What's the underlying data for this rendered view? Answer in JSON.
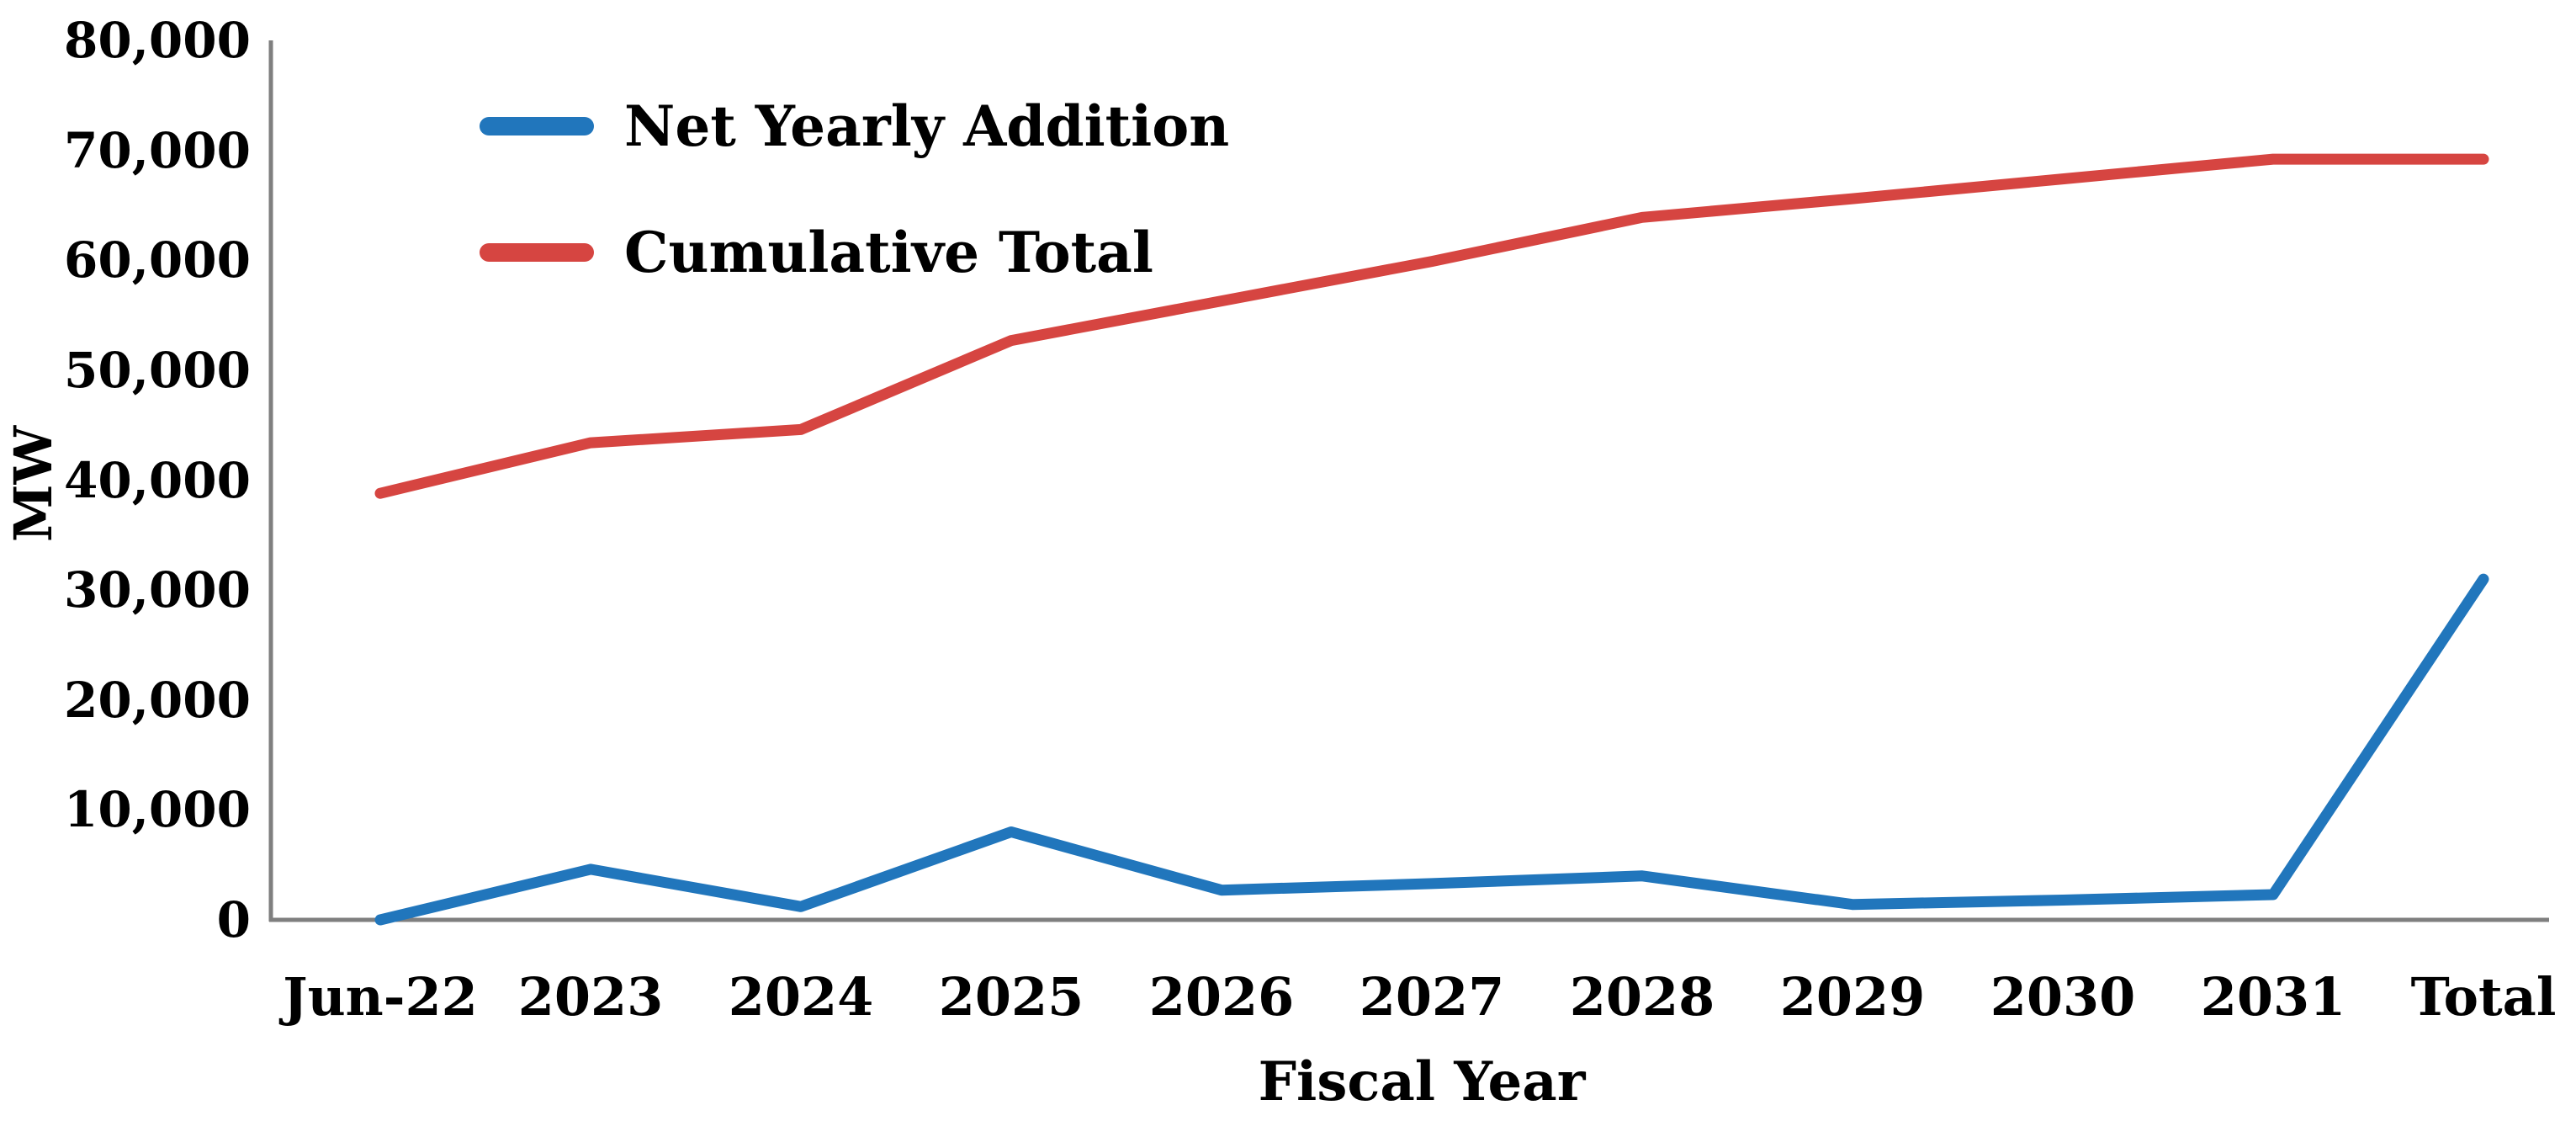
{
  "axes": {
    "y_title": "MW",
    "x_title": "Fiscal Year"
  },
  "legend": [
    {
      "label": "Net Yearly Addition",
      "color": "#2176BC"
    },
    {
      "label": "Cumulative Total",
      "color": "#D64541"
    }
  ],
  "colors": {
    "axis_line": "#7F7F7F",
    "text": "#000000",
    "background": "#FFFFFF"
  },
  "chart_data": {
    "type": "line",
    "title": "",
    "xlabel": "Fiscal Year",
    "ylabel": "MW",
    "categories": [
      "Jun-22",
      "2023",
      "2024",
      "2025",
      "2026",
      "2027",
      "2028",
      "2029",
      "2030",
      "2031",
      "Total"
    ],
    "series": [
      {
        "name": "Net Yearly Addition",
        "color": "#2176BC",
        "values": [
          0,
          4600,
          1200,
          8000,
          2700,
          3300,
          4000,
          1400,
          1800,
          2300,
          31000
        ]
      },
      {
        "name": "Cumulative Total",
        "color": "#D64541",
        "values": [
          38800,
          43400,
          44600,
          52700,
          56300,
          59900,
          63900,
          65600,
          67400,
          69200,
          69200
        ]
      }
    ],
    "ylim": [
      0,
      80000
    ],
    "ytick_step": 10000,
    "y_tick_labels": [
      "0",
      "10,000",
      "20,000",
      "30,000",
      "40,000",
      "50,000",
      "60,000",
      "70,000",
      "80,000"
    ],
    "grid": false,
    "legend_position": "upper-left-inside"
  }
}
